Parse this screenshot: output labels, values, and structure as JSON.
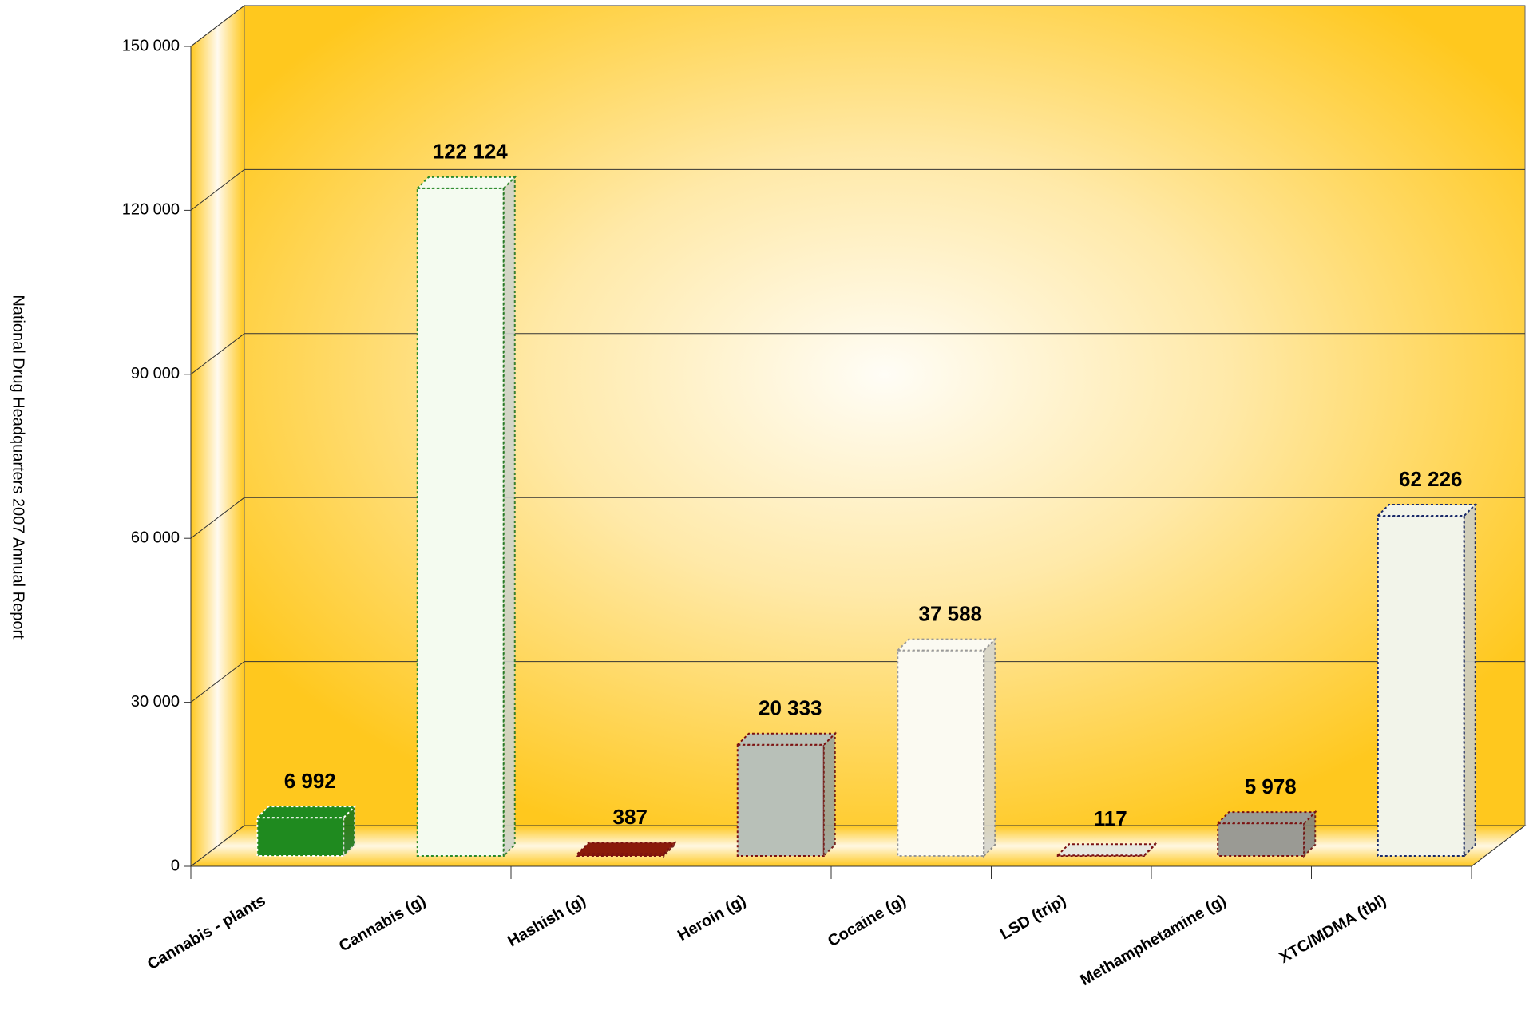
{
  "chart_data": {
    "type": "bar3d",
    "y_axis_label": "National Drug Headquarters 2007 Annual Report",
    "categories": [
      "Cannabis - plants",
      "Cannabis (g)",
      "Hashish (g)",
      "Heroin (g)",
      "Cocaine (g)",
      "LSD (trip)",
      "Methamphetamine (g)",
      "XTC/MDMA (tbl)"
    ],
    "values": [
      6992,
      122124,
      387,
      20333,
      37588,
      117,
      5978,
      62226
    ],
    "value_labels": [
      "6 992",
      "122 124",
      "387",
      "20 333",
      "37 588",
      "117",
      "5 978",
      "62 226"
    ],
    "colors": [
      "#1f8a1f",
      "#f4fbf0",
      "#8a1a0a",
      "#b8c0b8",
      "#fbfaf2",
      "#e8e8e0",
      "#9a9a94",
      "#f2f4ea"
    ],
    "edge_colors": [
      "#ffffff",
      "#2a8a2a",
      "#7a1010",
      "#7a1010",
      "#999999",
      "#7a1010",
      "#7a1010",
      "#1a2a6a"
    ],
    "ylim": [
      0,
      150000
    ],
    "yticks": [
      {
        "value": 0,
        "label": "0"
      },
      {
        "value": 30000,
        "label": "30 000"
      },
      {
        "value": 60000,
        "label": "60 000"
      },
      {
        "value": 90000,
        "label": "90 000"
      },
      {
        "value": 120000,
        "label": "120 000"
      },
      {
        "value": 150000,
        "label": "150 000"
      }
    ],
    "grid": true
  }
}
